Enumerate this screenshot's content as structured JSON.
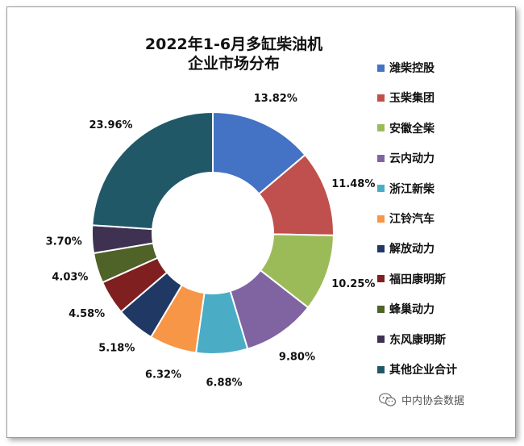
{
  "chart_data": {
    "type": "pie",
    "donut": true,
    "title_lines": [
      "2022年1-6月多缸柴油机",
      "企业市场分布"
    ],
    "categories": [
      "潍柴控股",
      "玉柴集团",
      "安徽全柴",
      "云内动力",
      "浙江新柴",
      "江铃汽车",
      "解放动力",
      "福田康明斯",
      "蜂巢动力",
      "东风康明斯",
      "其他企业合计"
    ],
    "values": [
      13.82,
      11.48,
      10.25,
      9.8,
      6.88,
      6.32,
      5.18,
      4.58,
      4.03,
      3.7,
      23.96
    ],
    "value_labels": [
      "13.82%",
      "11.48%",
      "10.25%",
      "9.80%",
      "6.88%",
      "6.32%",
      "5.18%",
      "4.58%",
      "4.03%",
      "3.70%",
      "23.96%"
    ],
    "colors": [
      "#4472C4",
      "#C0504D",
      "#9BBB59",
      "#8064A2",
      "#4BACC6",
      "#F79646",
      "#1F3864",
      "#7F1F1F",
      "#4F6228",
      "#3F3151",
      "#215868"
    ],
    "legend_position": "right"
  },
  "watermark": {
    "text": "中内协会数据",
    "icon": "wechat-icon"
  }
}
